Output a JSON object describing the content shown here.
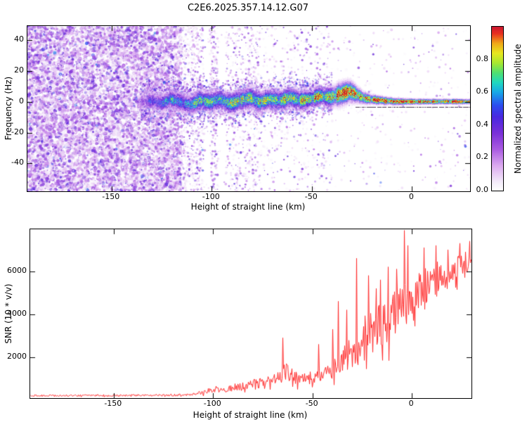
{
  "title": "C2E6.2025.357.14.12.G07",
  "colors": {
    "axis": "#000000",
    "background": "#ffffff",
    "snr_line": "#ff2a2a"
  },
  "colorbar": {
    "label": "Normalized spectral amplitude",
    "range": [
      0,
      1
    ],
    "ticks": [
      0.0,
      0.2,
      0.4,
      0.6,
      0.8
    ],
    "stops": [
      [
        0.0,
        "#ffffff"
      ],
      [
        0.05,
        "#f4ecfa"
      ],
      [
        0.15,
        "#dcaaf0"
      ],
      [
        0.25,
        "#ab5ce2"
      ],
      [
        0.35,
        "#7a30d8"
      ],
      [
        0.45,
        "#4a28e0"
      ],
      [
        0.52,
        "#2b4df0"
      ],
      [
        0.6,
        "#18a8e8"
      ],
      [
        0.66,
        "#20d8c0"
      ],
      [
        0.72,
        "#50e070"
      ],
      [
        0.78,
        "#a8e830"
      ],
      [
        0.84,
        "#e8e820"
      ],
      [
        0.9,
        "#f0a818"
      ],
      [
        0.96,
        "#e83020"
      ],
      [
        1.0,
        "#cc1830"
      ]
    ]
  },
  "chart_data": [
    {
      "type": "heatmap",
      "title": "C2E6.2025.357.14.12.G07",
      "xlabel": "Height of straight line (km)",
      "ylabel": "Frequency (Hz)",
      "xlim": [
        -192,
        29
      ],
      "ylim": [
        -58,
        49
      ],
      "xticks": [
        -150,
        -100,
        -50,
        0
      ],
      "yticks": [
        -40,
        -20,
        0,
        20,
        40
      ],
      "grid": false,
      "legend": "colorbar-right",
      "background_noise": {
        "regions": [
          {
            "from": -192,
            "to": -115,
            "density": 1.0
          },
          {
            "from": -115,
            "to": -95,
            "density": 0.45
          },
          {
            "from": -95,
            "to": -75,
            "density": 0.22
          },
          {
            "from": -75,
            "to": -40,
            "density": 0.08
          },
          {
            "from": -40,
            "to": 29,
            "density": 0.03
          }
        ],
        "clear_stripes": [
          [
            -97,
            -93
          ],
          [
            -104,
            -101
          ]
        ],
        "dense_stripes": [
          [
            -121,
            -116
          ],
          [
            -147,
            -143
          ]
        ]
      },
      "ridge": {
        "start": -137,
        "center": [
          [
            -137,
            0
          ],
          [
            -130,
            1
          ],
          [
            -125,
            -1
          ],
          [
            -121,
            2
          ],
          [
            -116,
            0
          ],
          [
            -111,
            -2
          ],
          [
            -106,
            1
          ],
          [
            -101,
            0
          ],
          [
            -96,
            2
          ],
          [
            -91,
            -1
          ],
          [
            -86,
            1
          ],
          [
            -81,
            3
          ],
          [
            -76,
            0
          ],
          [
            -71,
            2
          ],
          [
            -66,
            1
          ],
          [
            -61,
            3
          ],
          [
            -56,
            1
          ],
          [
            -51,
            2
          ],
          [
            -46,
            4
          ],
          [
            -41,
            3
          ],
          [
            -36,
            5
          ],
          [
            -31,
            7
          ],
          [
            -28,
            5
          ],
          [
            -25,
            3
          ],
          [
            -22,
            2
          ],
          [
            -19,
            1.5
          ],
          [
            -15,
            1
          ],
          [
            -10,
            0.5
          ],
          [
            -5,
            0.5
          ],
          [
            0,
            0.5
          ],
          [
            10,
            0.5
          ],
          [
            20,
            0.5
          ],
          [
            29,
            0.5
          ]
        ],
        "halfwidth": [
          [
            -137,
            5
          ],
          [
            -120,
            6
          ],
          [
            -100,
            7
          ],
          [
            -80,
            7
          ],
          [
            -60,
            7
          ],
          [
            -45,
            6
          ],
          [
            -36,
            8
          ],
          [
            -30,
            7
          ],
          [
            -25,
            4.5
          ],
          [
            -20,
            3.2
          ],
          [
            -12,
            2.6
          ],
          [
            -5,
            2.2
          ],
          [
            0,
            2
          ],
          [
            29,
            1.8
          ]
        ],
        "intensity": [
          [
            -137,
            0.3
          ],
          [
            -128,
            0.45
          ],
          [
            -120,
            0.55
          ],
          [
            -110,
            0.6
          ],
          [
            -100,
            0.6
          ],
          [
            -90,
            0.65
          ],
          [
            -80,
            0.65
          ],
          [
            -70,
            0.7
          ],
          [
            -60,
            0.72
          ],
          [
            -50,
            0.76
          ],
          [
            -42,
            0.8
          ],
          [
            -34,
            0.88
          ],
          [
            -29,
            0.92
          ],
          [
            -24,
            0.88
          ],
          [
            -19,
            0.92
          ],
          [
            -12,
            0.95
          ],
          [
            -5,
            0.96
          ],
          [
            0,
            0.96
          ],
          [
            29,
            0.97
          ]
        ]
      },
      "dark_line": {
        "from": -28,
        "to": 29,
        "freq": -3.5
      }
    },
    {
      "type": "line",
      "xlabel": "Height of straight line (km)",
      "ylabel": "SNR (10 * v/v)",
      "xlim": [
        -192,
        30
      ],
      "ylim": [
        100,
        7950
      ],
      "xticks": [
        -150,
        -100,
        -50,
        0
      ],
      "yticks": [
        2000,
        4000,
        6000
      ],
      "grid": false,
      "series": [
        {
          "name": "SNR",
          "color": "#ff2a2a",
          "trend": [
            [
              -192,
              210,
              70
            ],
            [
              -170,
              215,
              70
            ],
            [
              -150,
              220,
              75
            ],
            [
              -135,
              225,
              75
            ],
            [
              -120,
              240,
              85
            ],
            [
              -112,
              260,
              100
            ],
            [
              -107,
              330,
              160
            ],
            [
              -102,
              420,
              220
            ],
            [
              -98,
              520,
              260
            ],
            [
              -94,
              460,
              220
            ],
            [
              -90,
              560,
              280
            ],
            [
              -86,
              640,
              320
            ],
            [
              -82,
              700,
              360
            ],
            [
              -78,
              740,
              400
            ],
            [
              -74,
              800,
              450
            ],
            [
              -70,
              880,
              520
            ],
            [
              -66,
              1100,
              700
            ],
            [
              -63,
              1350,
              850
            ],
            [
              -61,
              1150,
              700
            ],
            [
              -58,
              950,
              560
            ],
            [
              -54,
              900,
              520
            ],
            [
              -50,
              1000,
              580
            ],
            [
              -47,
              1250,
              750
            ],
            [
              -44,
              1100,
              650
            ],
            [
              -41,
              1300,
              800
            ],
            [
              -38,
              1600,
              1000
            ],
            [
              -35,
              1900,
              1200
            ],
            [
              -32,
              2100,
              1350
            ],
            [
              -29,
              2400,
              1700
            ],
            [
              -27,
              2200,
              1500
            ],
            [
              -25,
              2500,
              1700
            ],
            [
              -23,
              2900,
              1900
            ],
            [
              -21,
              3100,
              1900
            ],
            [
              -19,
              3000,
              1800
            ],
            [
              -17,
              3300,
              1900
            ],
            [
              -15,
              3200,
              1800
            ],
            [
              -13,
              3600,
              1900
            ],
            [
              -11,
              3400,
              1800
            ],
            [
              -9,
              3900,
              1900
            ],
            [
              -7,
              4200,
              1900
            ],
            [
              -5,
              4400,
              2000
            ],
            [
              -3,
              4300,
              1900
            ],
            [
              -1,
              4600,
              1700
            ],
            [
              1,
              4800,
              1600
            ],
            [
              4,
              5000,
              1500
            ],
            [
              7,
              5200,
              1500
            ],
            [
              10,
              5100,
              1400
            ],
            [
              13,
              5600,
              1400
            ],
            [
              16,
              5400,
              1300
            ],
            [
              19,
              5800,
              1250
            ],
            [
              22,
              6000,
              1200
            ],
            [
              25,
              6200,
              1100
            ],
            [
              28,
              6400,
              1000
            ],
            [
              30,
              6500,
              950
            ]
          ],
          "spikes": [
            [
              -65,
              2900
            ],
            [
              -47,
              2600
            ],
            [
              -40,
              3300
            ],
            [
              -37,
              4600
            ],
            [
              -33,
              4200
            ],
            [
              -28,
              6600
            ],
            [
              -22,
              5800
            ],
            [
              -18,
              5200
            ],
            [
              -16,
              5600
            ],
            [
              -12,
              6200
            ],
            [
              -8,
              6100
            ],
            [
              -4,
              7900
            ],
            [
              -2,
              7200
            ],
            [
              6,
              7100
            ],
            [
              12,
              7200
            ],
            [
              18,
              7000
            ],
            [
              24,
              7300
            ],
            [
              29,
              7400
            ]
          ]
        }
      ]
    }
  ]
}
